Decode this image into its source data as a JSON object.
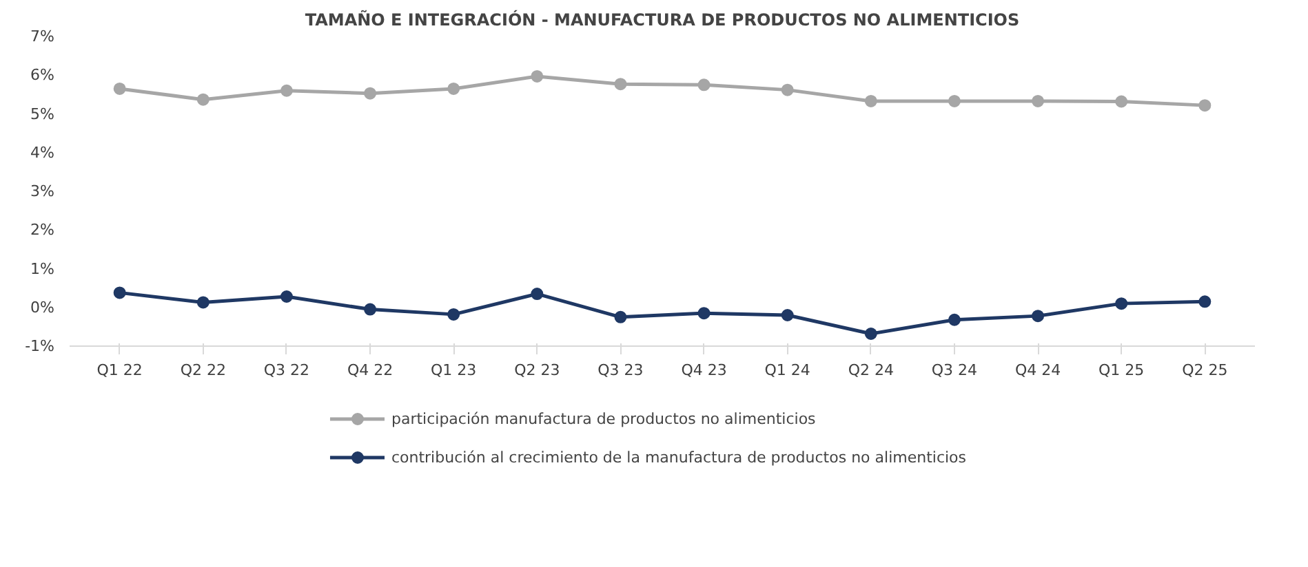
{
  "chart_data": {
    "type": "line",
    "title": "TAMAÑO E INTEGRACIÓN - MANUFACTURA DE PRODUCTOS NO ALIMENTICIOS",
    "categories": [
      "Q1 22",
      "Q2 22",
      "Q3 22",
      "Q4 22",
      "Q1 23",
      "Q2 23",
      "Q3 23",
      "Q4 23",
      "Q1 24",
      "Q2 24",
      "Q3 24",
      "Q4 24",
      "Q1 25",
      "Q2 25"
    ],
    "series": [
      {
        "name": "participación manufactura de productos no alimenticios",
        "color": "#a6a6a6",
        "values": [
          5.65,
          5.37,
          5.6,
          5.53,
          5.65,
          5.97,
          5.77,
          5.75,
          5.62,
          5.33,
          5.33,
          5.33,
          5.32,
          5.22
        ]
      },
      {
        "name": "contribución al crecimiento de la manufactura de productos no alimenticios",
        "color": "#1f3864",
        "values": [
          0.38,
          0.13,
          0.28,
          -0.05,
          -0.18,
          0.35,
          -0.25,
          -0.15,
          -0.2,
          -0.68,
          -0.32,
          -0.22,
          0.1,
          0.15
        ]
      }
    ],
    "ylim": [
      -1,
      7
    ],
    "yticks": [
      {
        "value": -1,
        "label": "-1%"
      },
      {
        "value": 0,
        "label": "0%"
      },
      {
        "value": 1,
        "label": "1%"
      },
      {
        "value": 2,
        "label": "2%"
      },
      {
        "value": 3,
        "label": "3%"
      },
      {
        "value": 4,
        "label": "4%"
      },
      {
        "value": 5,
        "label": "5%"
      },
      {
        "value": 6,
        "label": "6%"
      },
      {
        "value": 7,
        "label": "7%"
      }
    ],
    "grid": false,
    "legend": "bottom",
    "marker": "circle",
    "line_style": "solid"
  }
}
